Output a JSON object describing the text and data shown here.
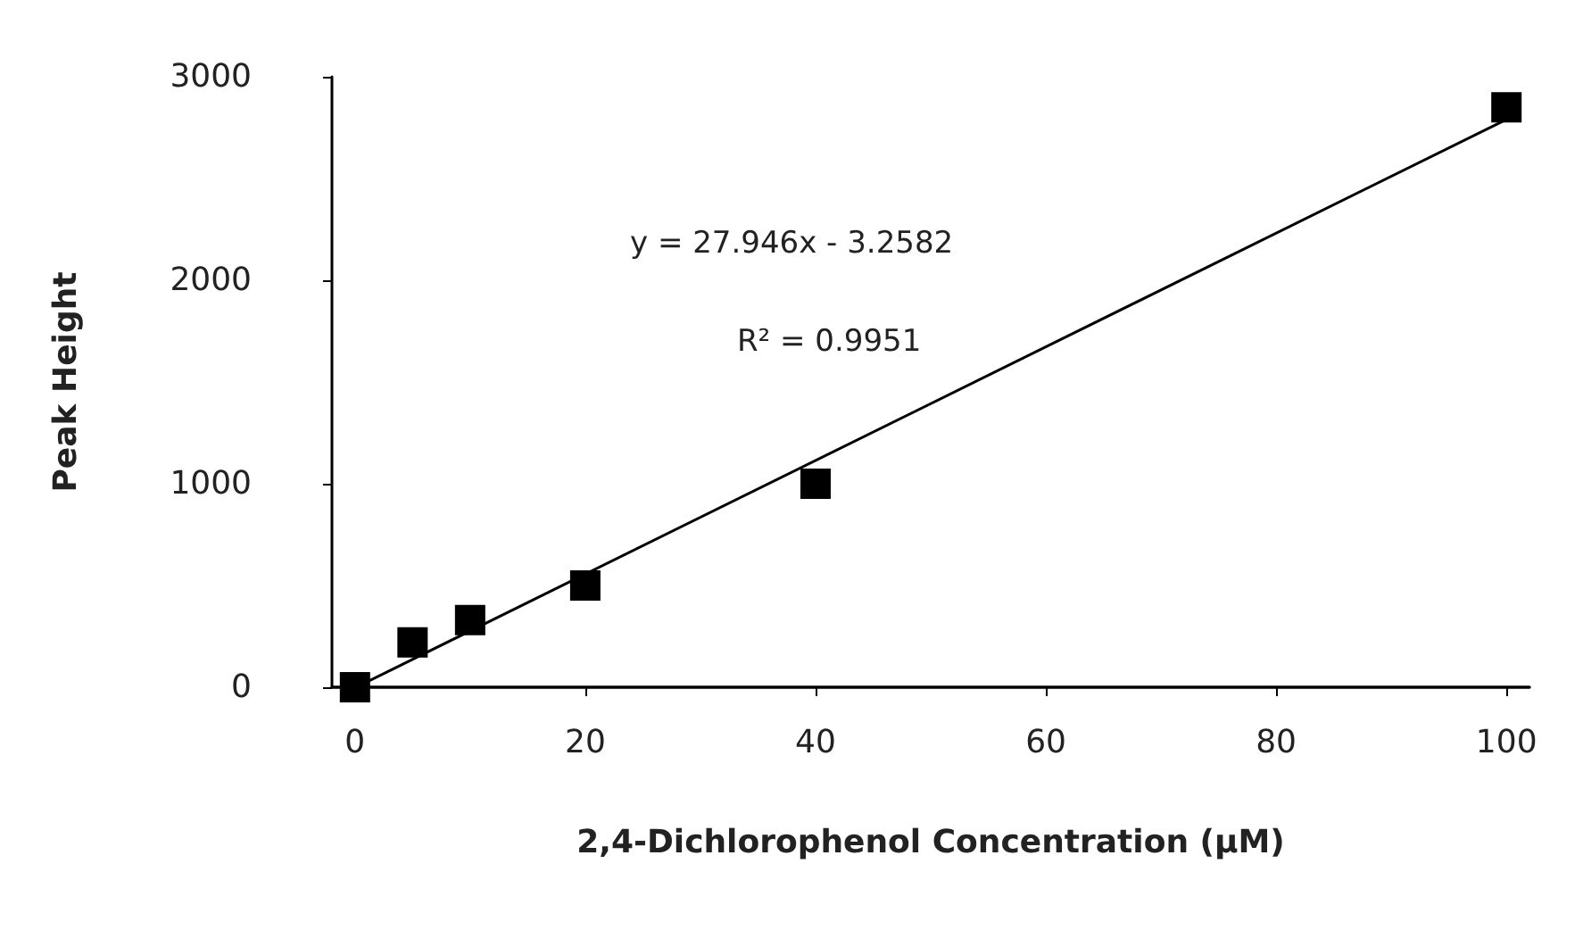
{
  "chart_data": {
    "type": "scatter",
    "xlabel": "2,4-Dichlorophenol Concentration (µM)",
    "ylabel": "Peak Height",
    "x": [
      0,
      5,
      10,
      20,
      40,
      100
    ],
    "series": [
      {
        "color": "#000000",
        "marker": "square",
        "values": [
          0,
          220,
          330,
          500,
          1000,
          2850
        ]
      },
      {
        "type": "line",
        "color": "#000000",
        "x": [
          0.1,
          100
        ],
        "values": [
          0,
          2790
        ]
      }
    ],
    "xlim": [
      -2,
      102
    ],
    "xticks": [
      0,
      20,
      40,
      60,
      80,
      100
    ],
    "ylim": [
      0,
      3000
    ],
    "yticks": [
      0,
      1000,
      2000,
      3000
    ],
    "grid": false,
    "annotations": [
      "y = 27.946x - 3.2582",
      "R² = 0.9951"
    ]
  }
}
